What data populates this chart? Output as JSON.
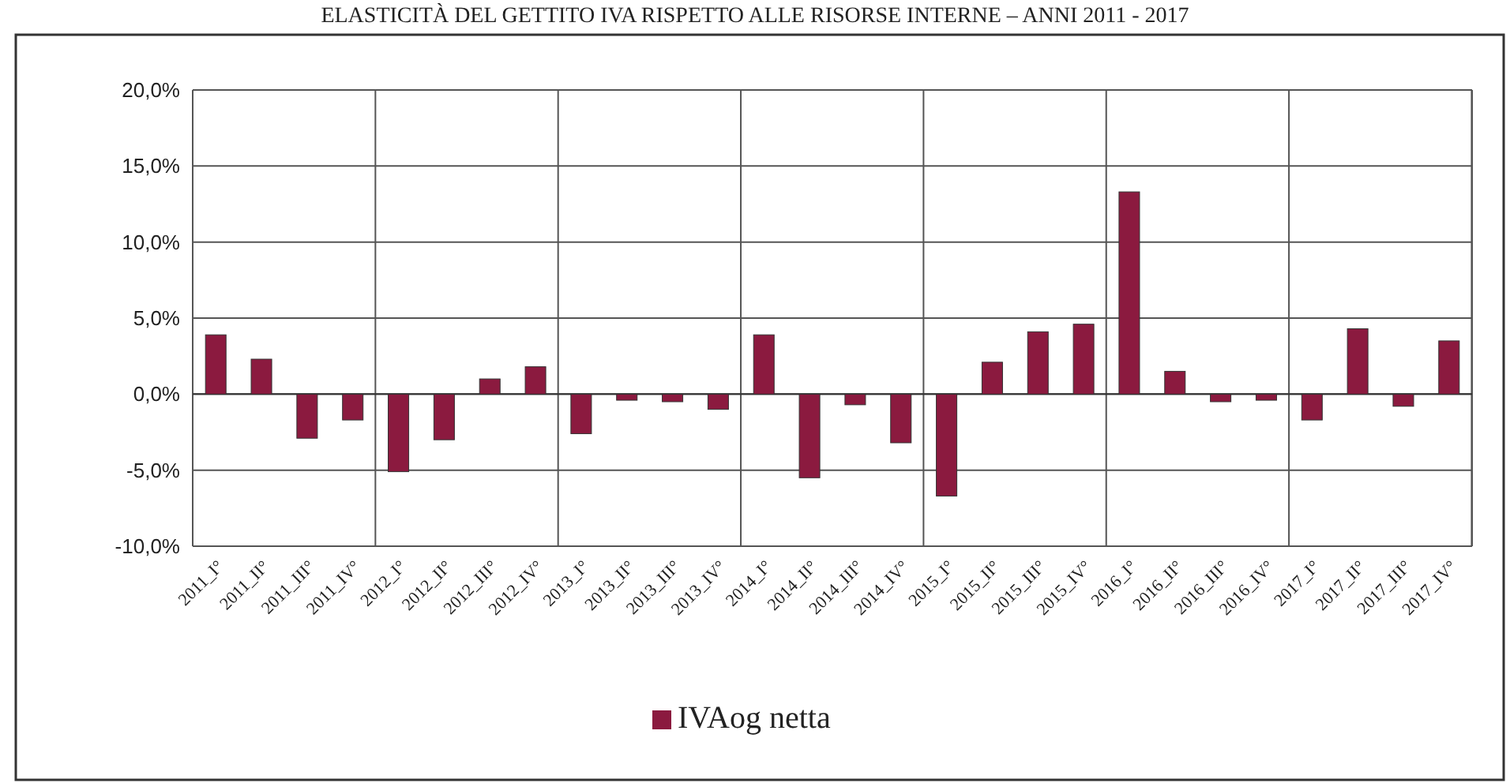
{
  "chart_data": {
    "type": "bar",
    "title": "ELASTICITÀ DEL GETTITO IVA RISPETTO ALLE RISORSE INTERNE – ANNI 2011 - 2017",
    "categories": [
      "2011_I°",
      "2011_II°",
      "2011_III°",
      "2011_IV°",
      "2012_I°",
      "2012_II°",
      "2012_III°",
      "2012_IV°",
      "2013_I°",
      "2013_II°",
      "2013_III°",
      "2013_IV°",
      "2014_I°",
      "2014_II°",
      "2014_III°",
      "2014_IV°",
      "2015_I°",
      "2015_II°",
      "2015_III°",
      "2015_IV°",
      "2016_I°",
      "2016_II°",
      "2016_III°",
      "2016_IV°",
      "2017_I°",
      "2017_II°",
      "2017_III°",
      "2017_IV°"
    ],
    "series": [
      {
        "name": "IVAog netta",
        "color": "#8b1a3f",
        "values": [
          3.9,
          2.3,
          -2.9,
          -1.7,
          -5.1,
          -3.0,
          1.0,
          1.8,
          -2.6,
          -0.4,
          -0.5,
          -1.0,
          3.9,
          -5.5,
          -0.7,
          -3.2,
          -6.7,
          2.1,
          4.1,
          4.6,
          13.3,
          1.5,
          -0.5,
          -0.4,
          -1.7,
          4.3,
          -0.8,
          3.5
        ]
      }
    ],
    "ylim": [
      -10,
      20
    ],
    "yticks": [
      {
        "value": -10,
        "label": "-10,0%"
      },
      {
        "value": -5,
        "label": "-5,0%"
      },
      {
        "value": 0,
        "label": "0,0%"
      },
      {
        "value": 5,
        "label": "5,0%"
      },
      {
        "value": 10,
        "label": "10,0%"
      },
      {
        "value": 15,
        "label": "15,0%"
      },
      {
        "value": 20,
        "label": "20,0%"
      }
    ],
    "grid": true,
    "legend": "bottom"
  }
}
